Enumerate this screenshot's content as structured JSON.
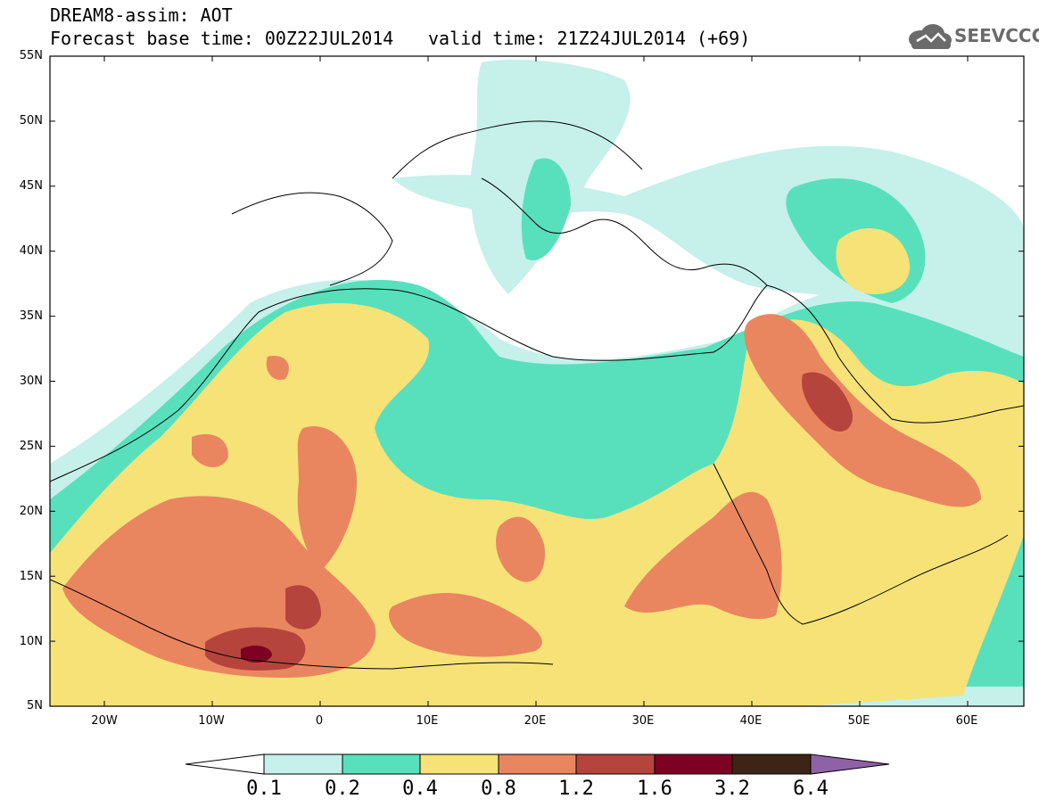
{
  "header": {
    "title": "DREAM8-assim: AOT",
    "base_time": "Forecast base time: 00Z22JUL2014",
    "valid_time": "valid time: 21Z24JUL2014 (+69)",
    "logo_text": "SEEVCCC"
  },
  "map": {
    "lat_labels": [
      "55N",
      "50N",
      "45N",
      "40N",
      "35N",
      "30N",
      "25N",
      "20N",
      "15N",
      "10N",
      "5N"
    ],
    "lon_labels": [
      "20W",
      "10W",
      "0",
      "10E",
      "20E",
      "30E",
      "40E",
      "50E",
      "60E"
    ]
  },
  "colorbar": {
    "labels": [
      "0.1",
      "0.2",
      "0.4",
      "0.8",
      "1.2",
      "1.6",
      "3.2",
      "6.4"
    ],
    "colors": [
      "#ffffff",
      "#c6f0ea",
      "#58e0bd",
      "#f6e277",
      "#e9865f",
      "#b5443d",
      "#7d0122",
      "#3d2414",
      "#8f62a6"
    ]
  },
  "palette": {
    "lvl1": "#c6f0ea",
    "lvl2": "#58e0bd",
    "lvl3": "#f6e277",
    "lvl4": "#e9865f",
    "lvl5": "#b5443d",
    "lvl6": "#7d0122"
  }
}
